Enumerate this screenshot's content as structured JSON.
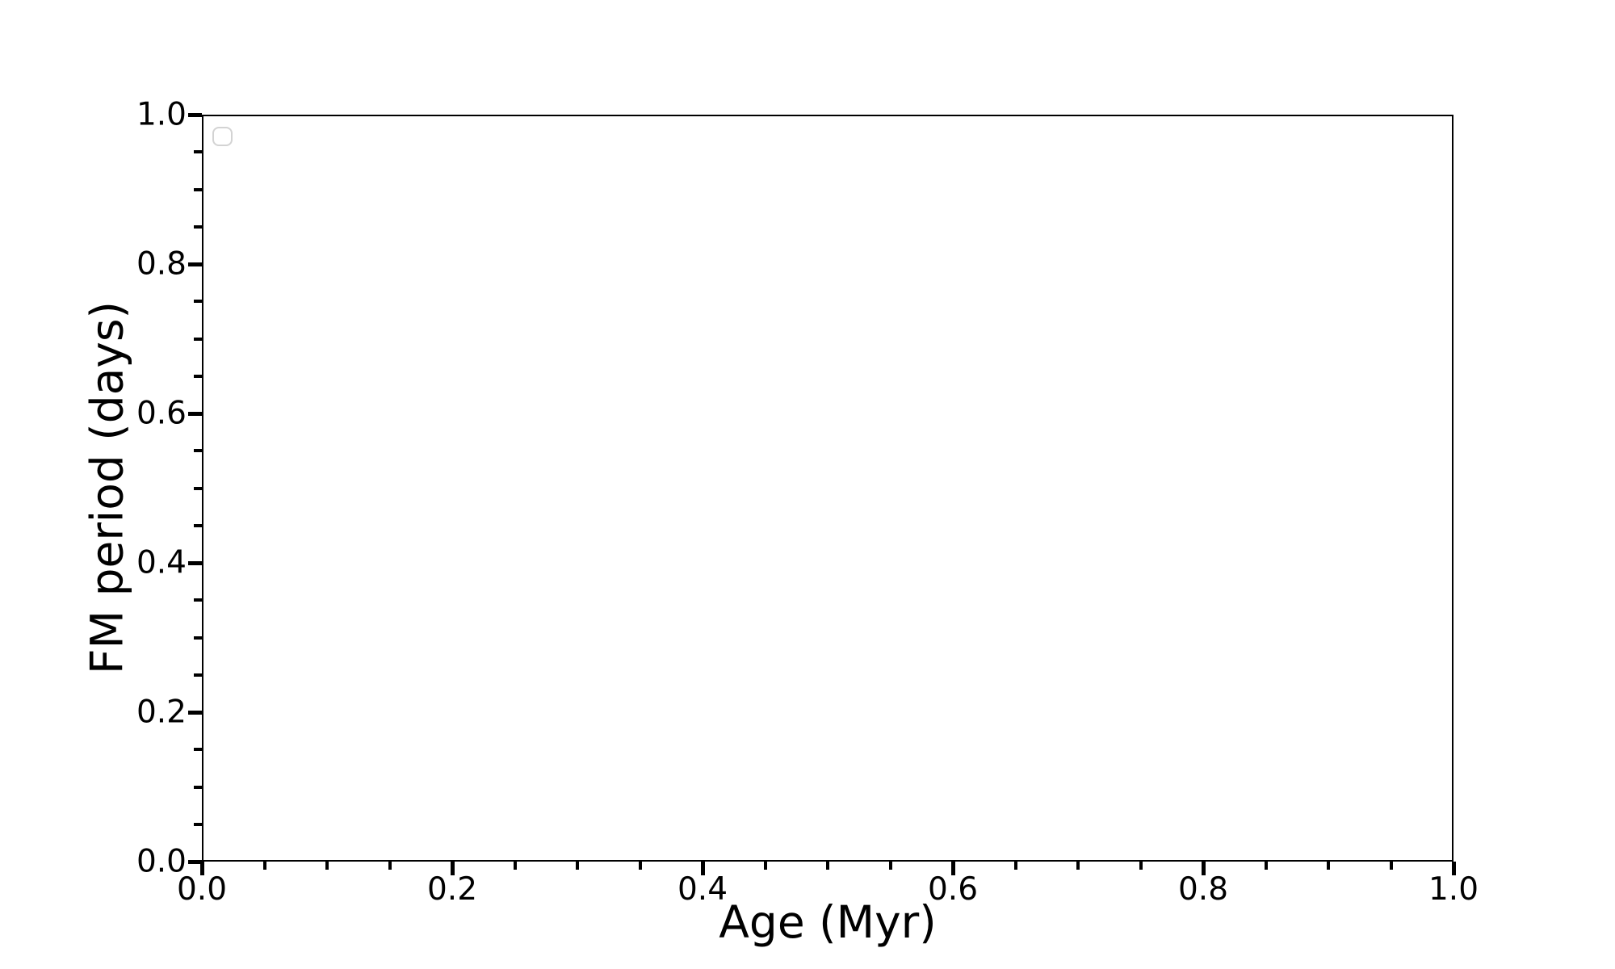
{
  "chart_data": {
    "type": "scatter",
    "title": "",
    "xlabel": "Age (Myr)",
    "ylabel": "FM period (days)",
    "xlim": [
      0.0,
      1.0
    ],
    "ylim": [
      0.0,
      1.0
    ],
    "x_major_ticks": [
      0.0,
      0.2,
      0.4,
      0.6,
      0.8,
      1.0
    ],
    "x_tick_labels": [
      "0.0",
      "0.2",
      "0.4",
      "0.6",
      "0.8",
      "1.0"
    ],
    "y_major_ticks": [
      0.0,
      0.2,
      0.4,
      0.6,
      0.8,
      1.0
    ],
    "y_tick_labels": [
      "0.0",
      "0.2",
      "0.4",
      "0.6",
      "0.8",
      "1.0"
    ],
    "minor_tick_interval": 0.05,
    "grid": false,
    "series": [],
    "legend": {
      "visible": true,
      "entries": [],
      "position": "upper left"
    }
  },
  "colors": {
    "background": "#ffffff",
    "axis": "#000000",
    "text": "#000000",
    "legend_border": "#d3d3d3"
  }
}
